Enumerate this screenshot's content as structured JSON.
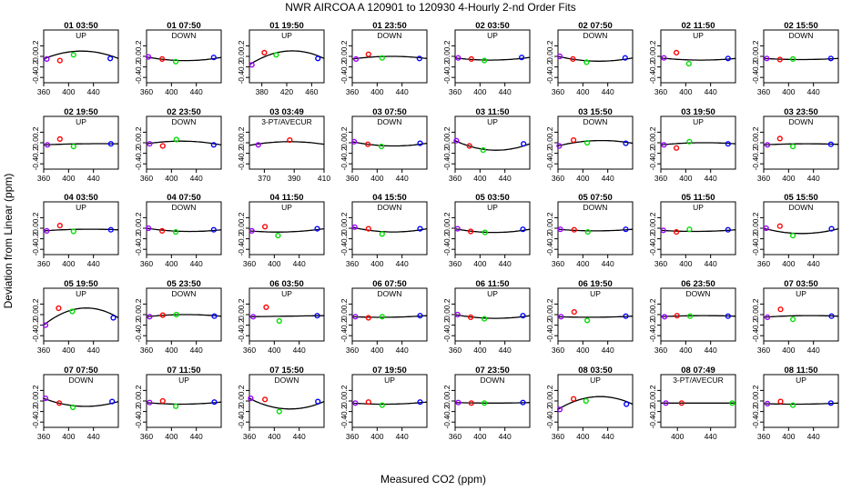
{
  "chart_data": {
    "type": "scatter",
    "title": "NWR   AIRCOA A   120901 to 120930   4-Hourly 2-nd Order Fits",
    "xlabel": "Measured CO2 (ppm)",
    "ylabel": "Deviation from Linear (ppm)",
    "ylim": [
      -0.5,
      0.5
    ],
    "yticks": [
      -0.4,
      -0.2,
      0.0,
      0.2
    ],
    "ytick_labels": [
      "-0.4",
      "-0.2",
      "0.0",
      "0.2"
    ],
    "default_xlim": [
      360,
      480
    ],
    "default_xticks": [
      360,
      400,
      440
    ],
    "panels": [
      {
        "title": "01 03:50",
        "label": "UP",
        "pts": [
          [
            365,
            -0.05
          ],
          [
            386,
            -0.08
          ],
          [
            408,
            0.03
          ],
          [
            467,
            -0.04
          ]
        ],
        "curve": [
          -0.05,
          0.1,
          -0.04
        ]
      },
      {
        "title": "01 07:50",
        "label": "DOWN",
        "pts": [
          [
            363,
            -0.01
          ],
          [
            385,
            -0.05
          ],
          [
            407,
            -0.1
          ],
          [
            468,
            -0.02
          ]
        ],
        "curve": [
          -0.01,
          -0.08,
          -0.02
        ]
      },
      {
        "title": "01 19:50",
        "label": "UP",
        "xlim": [
          360,
          480
        ],
        "xticks": [
          380,
          420,
          460
        ],
        "pts": [
          [
            364,
            -0.16
          ],
          [
            384,
            0.07
          ],
          [
            403,
            0.03
          ],
          [
            470,
            -0.04
          ]
        ],
        "curve": [
          -0.16,
          0.1,
          -0.04
        ]
      },
      {
        "title": "01 23:50",
        "label": "DOWN",
        "pts": [
          [
            366,
            -0.05
          ],
          [
            386,
            0.04
          ],
          [
            408,
            -0.03
          ],
          [
            468,
            -0.04
          ]
        ],
        "curve": [
          -0.05,
          0.0,
          -0.04
        ]
      },
      {
        "title": "02 03:50",
        "label": "UP",
        "pts": [
          [
            365,
            -0.03
          ],
          [
            386,
            -0.05
          ],
          [
            407,
            -0.08
          ],
          [
            467,
            -0.02
          ]
        ],
        "curve": [
          -0.03,
          -0.07,
          -0.02
        ]
      },
      {
        "title": "02 07:50",
        "label": "DOWN",
        "pts": [
          [
            363,
            0.0
          ],
          [
            384,
            -0.05
          ],
          [
            406,
            -0.11
          ],
          [
            468,
            -0.03
          ]
        ],
        "curve": [
          0.0,
          -0.09,
          -0.03
        ]
      },
      {
        "title": "02 11:50",
        "label": "UP",
        "pts": [
          [
            365,
            -0.03
          ],
          [
            385,
            0.07
          ],
          [
            405,
            -0.14
          ],
          [
            468,
            -0.04
          ]
        ],
        "curve": [
          -0.03,
          -0.07,
          -0.04
        ]
      },
      {
        "title": "02 15:50",
        "label": "DOWN",
        "pts": [
          [
            365,
            -0.04
          ],
          [
            386,
            -0.06
          ],
          [
            407,
            -0.05
          ],
          [
            468,
            -0.04
          ]
        ],
        "curve": [
          -0.04,
          -0.06,
          -0.04
        ]
      },
      {
        "title": "02 19:50",
        "label": "UP",
        "pts": [
          [
            366,
            -0.04
          ],
          [
            386,
            0.07
          ],
          [
            408,
            -0.07
          ],
          [
            468,
            -0.02
          ]
        ],
        "curve": [
          -0.04,
          -0.02,
          -0.02
        ]
      },
      {
        "title": "02 23:50",
        "label": "DOWN",
        "pts": [
          [
            365,
            -0.02
          ],
          [
            386,
            -0.06
          ],
          [
            408,
            0.06
          ],
          [
            468,
            -0.04
          ]
        ],
        "curve": [
          -0.02,
          0.03,
          -0.04
        ]
      },
      {
        "title": "03 03:49",
        "label": "3-PT/AVECUR",
        "xlim": [
          360,
          410
        ],
        "xticks": [
          370,
          390,
          410
        ],
        "pts": [
          [
            366,
            -0.04
          ],
          [
            387,
            0.05
          ]
        ],
        "curve": [
          -0.05,
          0.02,
          -0.03
        ]
      },
      {
        "title": "03 07:50",
        "label": "DOWN",
        "pts": [
          [
            363,
            0.02
          ],
          [
            385,
            -0.03
          ],
          [
            407,
            -0.07
          ],
          [
            469,
            -0.01
          ]
        ],
        "curve": [
          0.02,
          -0.06,
          -0.01
        ]
      },
      {
        "title": "03 11:50",
        "label": "UP",
        "pts": [
          [
            362,
            0.04
          ],
          [
            383,
            -0.06
          ],
          [
            405,
            -0.14
          ],
          [
            470,
            -0.02
          ]
        ],
        "curve": [
          0.04,
          -0.14,
          -0.02
        ]
      },
      {
        "title": "03 15:50",
        "label": "DOWN",
        "pts": [
          [
            362,
            -0.06
          ],
          [
            385,
            0.05
          ],
          [
            407,
            0.0
          ],
          [
            469,
            -0.01
          ]
        ],
        "curve": [
          -0.06,
          0.04,
          -0.01
        ]
      },
      {
        "title": "03 19:50",
        "label": "UP",
        "pts": [
          [
            365,
            -0.04
          ],
          [
            385,
            -0.1
          ],
          [
            406,
            0.02
          ],
          [
            468,
            -0.02
          ]
        ],
        "curve": [
          -0.04,
          0.0,
          -0.02
        ]
      },
      {
        "title": "03 23:50",
        "label": "DOWN",
        "pts": [
          [
            366,
            -0.04
          ],
          [
            386,
            0.08
          ],
          [
            407,
            -0.07
          ],
          [
            468,
            -0.03
          ]
        ],
        "curve": [
          -0.04,
          -0.02,
          -0.03
        ]
      },
      {
        "title": "04 03:50",
        "label": "UP",
        "pts": [
          [
            365,
            -0.05
          ],
          [
            386,
            0.05
          ],
          [
            408,
            -0.06
          ],
          [
            468,
            -0.03
          ]
        ],
        "curve": [
          -0.05,
          -0.02,
          -0.03
        ]
      },
      {
        "title": "04 07:50",
        "label": "DOWN",
        "pts": [
          [
            363,
            0.0
          ],
          [
            385,
            -0.05
          ],
          [
            407,
            -0.07
          ],
          [
            468,
            -0.03
          ]
        ],
        "curve": [
          0.0,
          -0.06,
          -0.03
        ]
      },
      {
        "title": "04 11:50",
        "label": "UP",
        "pts": [
          [
            364,
            -0.05
          ],
          [
            385,
            0.03
          ],
          [
            406,
            -0.14
          ],
          [
            469,
            -0.01
          ]
        ],
        "curve": [
          -0.05,
          -0.07,
          -0.01
        ]
      },
      {
        "title": "04 15:50",
        "label": "DOWN",
        "pts": [
          [
            364,
            0.02
          ],
          [
            386,
            -0.01
          ],
          [
            408,
            -0.11
          ],
          [
            469,
            -0.01
          ]
        ],
        "curve": [
          0.02,
          -0.07,
          -0.01
        ]
      },
      {
        "title": "05 03:50",
        "label": "UP",
        "pts": [
          [
            364,
            -0.01
          ],
          [
            385,
            -0.06
          ],
          [
            408,
            -0.08
          ],
          [
            469,
            -0.02
          ]
        ],
        "curve": [
          -0.01,
          -0.08,
          -0.02
        ]
      },
      {
        "title": "05 07:50",
        "label": "DOWN",
        "pts": [
          [
            364,
            -0.02
          ],
          [
            386,
            -0.03
          ],
          [
            408,
            -0.07
          ],
          [
            469,
            -0.02
          ]
        ],
        "curve": [
          -0.02,
          -0.05,
          -0.02
        ]
      },
      {
        "title": "05 11:50",
        "label": "UP",
        "pts": [
          [
            364,
            -0.04
          ],
          [
            385,
            -0.07
          ],
          [
            406,
            -0.02
          ],
          [
            468,
            -0.03
          ]
        ],
        "curve": [
          -0.04,
          -0.06,
          -0.03
        ]
      },
      {
        "title": "05 15:50",
        "label": "DOWN",
        "pts": [
          [
            364,
            0.0
          ],
          [
            386,
            0.04
          ],
          [
            407,
            -0.14
          ],
          [
            469,
            -0.01
          ]
        ],
        "curve": [
          0.0,
          -0.1,
          -0.01
        ]
      },
      {
        "title": "05 19:50",
        "label": "UP",
        "pts": [
          [
            363,
            -0.2
          ],
          [
            384,
            0.12
          ],
          [
            406,
            0.06
          ],
          [
            472,
            -0.06
          ]
        ],
        "curve": [
          -0.2,
          0.12,
          -0.06
        ]
      },
      {
        "title": "05 23:50",
        "label": "DOWN",
        "pts": [
          [
            365,
            -0.04
          ],
          [
            386,
            -0.01
          ],
          [
            408,
            0.0
          ],
          [
            469,
            -0.03
          ]
        ],
        "curve": [
          -0.04,
          0.0,
          -0.03
        ]
      },
      {
        "title": "06 03:50",
        "label": "UP",
        "pts": [
          [
            366,
            -0.04
          ],
          [
            387,
            0.14
          ],
          [
            408,
            -0.12
          ],
          [
            469,
            -0.02
          ]
        ],
        "curve": [
          -0.04,
          -0.03,
          -0.02
        ]
      },
      {
        "title": "06 07:50",
        "label": "DOWN",
        "pts": [
          [
            365,
            -0.04
          ],
          [
            386,
            -0.06
          ],
          [
            408,
            -0.04
          ],
          [
            469,
            -0.02
          ]
        ],
        "curve": [
          -0.04,
          -0.05,
          -0.02
        ]
      },
      {
        "title": "06 11:50",
        "label": "UP",
        "pts": [
          [
            364,
            0.0
          ],
          [
            385,
            -0.05
          ],
          [
            407,
            -0.08
          ],
          [
            469,
            -0.02
          ]
        ],
        "curve": [
          0.0,
          -0.07,
          -0.02
        ]
      },
      {
        "title": "06 19:50",
        "label": "UP",
        "pts": [
          [
            365,
            -0.04
          ],
          [
            386,
            0.05
          ],
          [
            407,
            -0.11
          ],
          [
            469,
            -0.03
          ]
        ],
        "curve": [
          -0.04,
          -0.05,
          -0.03
        ]
      },
      {
        "title": "06 23:50",
        "label": "DOWN",
        "pts": [
          [
            366,
            -0.04
          ],
          [
            386,
            -0.02
          ],
          [
            407,
            -0.03
          ],
          [
            468,
            -0.03
          ]
        ],
        "curve": [
          -0.04,
          -0.02,
          -0.03
        ]
      },
      {
        "title": "07 03:50",
        "label": "UP",
        "pts": [
          [
            366,
            -0.05
          ],
          [
            387,
            0.1
          ],
          [
            407,
            -0.09
          ],
          [
            469,
            -0.03
          ]
        ],
        "curve": [
          -0.05,
          -0.02,
          -0.03
        ]
      },
      {
        "title": "07 07:50",
        "label": "DOWN",
        "pts": [
          [
            363,
            0.05
          ],
          [
            385,
            -0.04
          ],
          [
            407,
            -0.12
          ],
          [
            470,
            -0.01
          ]
        ],
        "curve": [
          0.05,
          -0.1,
          -0.01
        ]
      },
      {
        "title": "07 11:50",
        "label": "UP",
        "pts": [
          [
            365,
            -0.03
          ],
          [
            386,
            0.0
          ],
          [
            407,
            -0.1
          ],
          [
            469,
            -0.02
          ]
        ],
        "curve": [
          -0.03,
          -0.06,
          -0.02
        ]
      },
      {
        "title": "07 15:50",
        "label": "DOWN",
        "pts": [
          [
            362,
            0.05
          ],
          [
            385,
            0.03
          ],
          [
            408,
            -0.2
          ],
          [
            470,
            -0.01
          ]
        ],
        "curve": [
          0.05,
          -0.15,
          -0.01
        ]
      },
      {
        "title": "07 19:50",
        "label": "UP",
        "pts": [
          [
            365,
            -0.04
          ],
          [
            386,
            -0.02
          ],
          [
            408,
            -0.08
          ],
          [
            469,
            -0.02
          ]
        ],
        "curve": [
          -0.04,
          -0.06,
          -0.02
        ]
      },
      {
        "title": "07 23:50",
        "label": "DOWN",
        "pts": [
          [
            365,
            -0.03
          ],
          [
            386,
            -0.04
          ],
          [
            407,
            -0.04
          ],
          [
            469,
            -0.03
          ]
        ],
        "curve": [
          -0.03,
          -0.04,
          -0.03
        ]
      },
      {
        "title": "08 03:50",
        "label": "UP",
        "pts": [
          [
            363,
            -0.16
          ],
          [
            385,
            0.04
          ],
          [
            405,
            0.0
          ],
          [
            470,
            -0.06
          ]
        ],
        "curve": [
          -0.16,
          0.08,
          -0.06
        ]
      },
      {
        "title": "08 07:49",
        "label": "3-PT/AVECUR",
        "xlim": [
          380,
          470
        ],
        "xticks": [
          400,
          440
        ],
        "pts": [
          [
            386,
            -0.04
          ],
          [
            405,
            -0.04
          ],
          [
            466,
            -0.04
          ]
        ],
        "curve": [
          -0.04,
          -0.04,
          -0.04
        ]
      },
      {
        "title": "08 11:50",
        "label": "UP",
        "pts": [
          [
            366,
            -0.05
          ],
          [
            387,
            -0.01
          ],
          [
            407,
            -0.08
          ],
          [
            468,
            -0.04
          ]
        ],
        "curve": [
          -0.05,
          -0.06,
          -0.04
        ]
      }
    ]
  }
}
